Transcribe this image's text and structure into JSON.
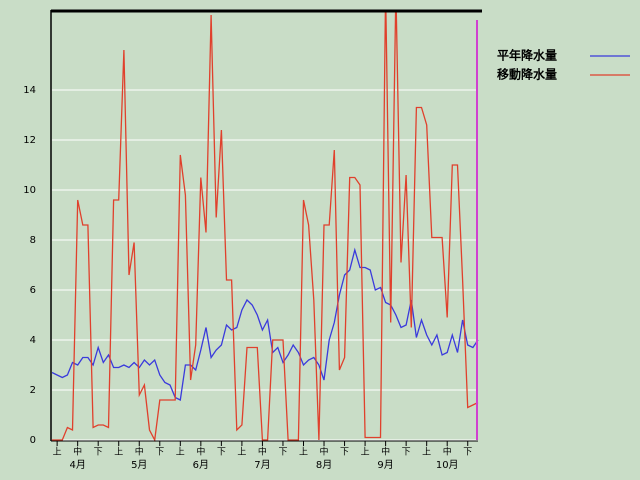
{
  "chart_data": {
    "type": "line",
    "categories": [
      null,
      "上",
      null,
      null,
      null,
      "中",
      null,
      null,
      null,
      "下",
      null,
      null,
      null,
      "上",
      null,
      null,
      null,
      "中",
      null,
      null,
      null,
      "下",
      null,
      null,
      null,
      "上",
      null,
      null,
      null,
      "中",
      null,
      null,
      null,
      "下",
      null,
      null,
      null,
      "上",
      null,
      null,
      null,
      "中",
      null,
      null,
      null,
      "下",
      null,
      null,
      null,
      "上",
      null,
      null,
      null,
      "中",
      null,
      null,
      null,
      "下",
      null,
      null,
      null,
      "上",
      null,
      null,
      null,
      "中",
      null,
      null,
      null,
      "下",
      null,
      null,
      null,
      "上",
      null,
      null,
      null,
      "中",
      null,
      null,
      null,
      "下",
      null,
      null
    ],
    "months": [
      "4月",
      "5月",
      "6月",
      "7月",
      "8月",
      "9月",
      "10月"
    ],
    "series": [
      {
        "name": "平年降水量",
        "color": "#3a3adc",
        "values": [
          2.7,
          2.6,
          2.5,
          2.6,
          3.1,
          3.0,
          3.3,
          3.3,
          3.0,
          3.7,
          3.1,
          3.4,
          2.9,
          2.9,
          3.0,
          2.9,
          3.1,
          2.9,
          3.2,
          3.0,
          3.2,
          2.6,
          2.3,
          2.2,
          1.7,
          1.6,
          3.0,
          3.0,
          2.8,
          3.6,
          4.5,
          3.3,
          3.6,
          3.8,
          4.6,
          4.4,
          4.5,
          5.2,
          5.6,
          5.4,
          5.0,
          4.4,
          4.8,
          3.5,
          3.7,
          3.1,
          3.4,
          3.8,
          3.5,
          3.0,
          3.2,
          3.3,
          3.0,
          2.4,
          4.0,
          4.7,
          5.8,
          6.6,
          6.8,
          7.6,
          6.9,
          6.9,
          6.8,
          6.0,
          6.1,
          5.5,
          5.4,
          5.0,
          4.5,
          4.6,
          5.6,
          4.1,
          4.8,
          4.2,
          3.8,
          4.2,
          3.4,
          3.5,
          4.2,
          3.5,
          4.8,
          3.8,
          3.7,
          4.0
        ]
      },
      {
        "name": "移動降水量",
        "color": "#e0402c",
        "values": [
          0,
          0,
          0,
          0.5,
          0.4,
          9.6,
          8.6,
          8.6,
          0.5,
          0.6,
          0.6,
          0.5,
          9.6,
          9.6,
          15.6,
          6.6,
          7.9,
          1.8,
          2.2,
          0.4,
          0,
          1.6,
          1.6,
          1.6,
          1.6,
          11.4,
          9.8,
          2.4,
          3.8,
          10.5,
          8.3,
          17,
          8.9,
          12.4,
          6.4,
          6.4,
          0.4,
          0.6,
          3.7,
          3.7,
          3.7,
          0,
          0,
          4,
          4,
          4,
          0,
          0,
          0,
          9.6,
          8.6,
          5.6,
          0,
          8.6,
          8.6,
          11.6,
          2.8,
          3.3,
          10.5,
          10.5,
          10.2,
          0.1,
          0.1,
          0.1,
          0.1,
          18,
          4.7,
          18,
          7.1,
          10.6,
          4.5,
          13.3,
          13.3,
          12.6,
          8.1,
          8.1,
          8.1,
          4.9,
          11,
          11,
          6.4,
          1.3,
          1.4,
          1.5
        ]
      }
    ],
    "ylim": [
      0,
      17.2
    ],
    "yticks": [
      0,
      2,
      4,
      6,
      8,
      10,
      12,
      14
    ],
    "grid": true
  }
}
